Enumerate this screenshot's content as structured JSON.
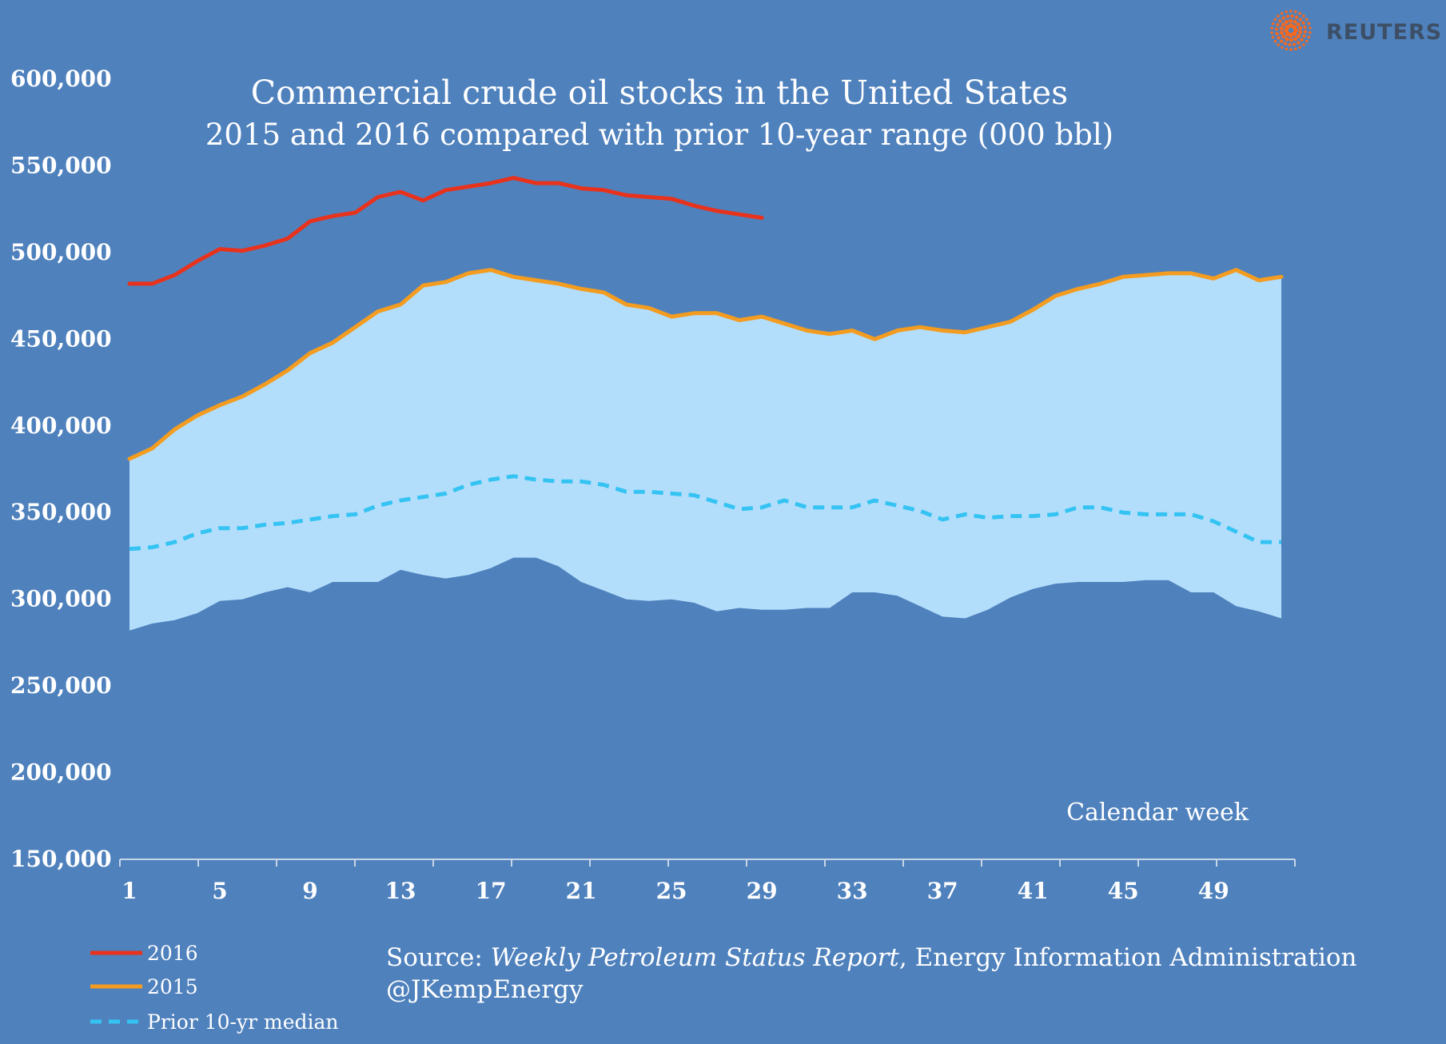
{
  "brand": {
    "name": "REUTERS"
  },
  "chart_data": {
    "type": "line",
    "title": "Commercial crude oil stocks in the United States",
    "subtitle": "2015 and 2016 compared with prior 10-year range (000 bbl)",
    "xlabel": "Calendar week",
    "ylabel": "",
    "xlim": [
      1,
      52
    ],
    "ylim": [
      150000,
      600000
    ],
    "x_ticks": [
      1,
      5,
      9,
      13,
      17,
      21,
      25,
      29,
      33,
      37,
      41,
      45,
      49
    ],
    "y_ticks": [
      150000,
      200000,
      250000,
      300000,
      350000,
      400000,
      450000,
      500000,
      550000,
      600000
    ],
    "y_tick_labels": [
      "150,000",
      "200,000",
      "250,000",
      "300,000",
      "350,000",
      "400,000",
      "450,000",
      "500,000",
      "550,000",
      "600,000"
    ],
    "band": {
      "name": "Prior 10-yr range",
      "fill": "#b3defb",
      "upper": [
        381,
        387,
        398,
        406,
        412,
        417,
        424,
        432,
        442,
        448,
        457,
        466,
        470,
        481,
        483,
        488,
        490,
        486,
        484,
        482,
        479,
        477,
        470,
        468,
        463,
        465,
        465,
        461,
        463,
        459,
        455,
        453,
        455,
        450,
        455,
        457,
        455,
        454,
        457,
        460,
        467,
        475,
        479,
        482,
        486,
        487,
        488,
        488,
        485,
        490,
        484,
        486
      ],
      "lower": [
        282,
        286,
        288,
        292,
        299,
        300,
        304,
        307,
        304,
        310,
        310,
        310,
        317,
        314,
        312,
        314,
        318,
        324,
        324,
        319,
        310,
        305,
        300,
        299,
        300,
        298,
        293,
        295,
        294,
        294,
        295,
        295,
        304,
        304,
        302,
        296,
        290,
        289,
        294,
        301,
        306,
        309,
        310,
        310,
        310,
        311,
        311,
        304,
        304,
        296,
        293,
        289
      ]
    },
    "series": [
      {
        "name": "2016",
        "color": "#e8321c",
        "style": "solid",
        "values": [
          482,
          482,
          487,
          495,
          502,
          501,
          504,
          508,
          518,
          521,
          523,
          532,
          535,
          530,
          536,
          538,
          540,
          543,
          540,
          540,
          537,
          536,
          533,
          532,
          531,
          527,
          524,
          522,
          520
        ]
      },
      {
        "name": "2015",
        "color": "#f39c1f",
        "style": "solid",
        "values": [
          381,
          387,
          398,
          406,
          412,
          417,
          424,
          432,
          442,
          448,
          457,
          466,
          470,
          481,
          483,
          488,
          490,
          486,
          484,
          482,
          479,
          477,
          470,
          468,
          463,
          465,
          465,
          461,
          463,
          459,
          455,
          453,
          455,
          450,
          455,
          457,
          455,
          454,
          457,
          460,
          467,
          475,
          479,
          482,
          486,
          487,
          488,
          488,
          485,
          490,
          484,
          486
        ]
      },
      {
        "name": "Prior 10-yr median",
        "color": "#34c3f2",
        "style": "dashed",
        "values": [
          329,
          330,
          333,
          338,
          341,
          341,
          343,
          344,
          346,
          348,
          349,
          354,
          357,
          359,
          361,
          366,
          369,
          371,
          369,
          368,
          368,
          366,
          362,
          362,
          361,
          360,
          356,
          352,
          353,
          357,
          353,
          353,
          353,
          357,
          354,
          351,
          346,
          349,
          347,
          348,
          348,
          349,
          353,
          353,
          350,
          349,
          349,
          349,
          345,
          339,
          333,
          333
        ]
      }
    ],
    "value_units": "thousand bbl in thousands (values above are in 000s of the axis units)",
    "legend": {
      "placement": "bottom-left",
      "items": [
        "2016",
        "2015",
        "Prior 10-yr median"
      ]
    },
    "source": {
      "prefix": "Source: ",
      "report": "Weekly Petroleum Status Report",
      "suffix": ", Energy Information Administration",
      "handle": "@JKempEnergy"
    }
  }
}
